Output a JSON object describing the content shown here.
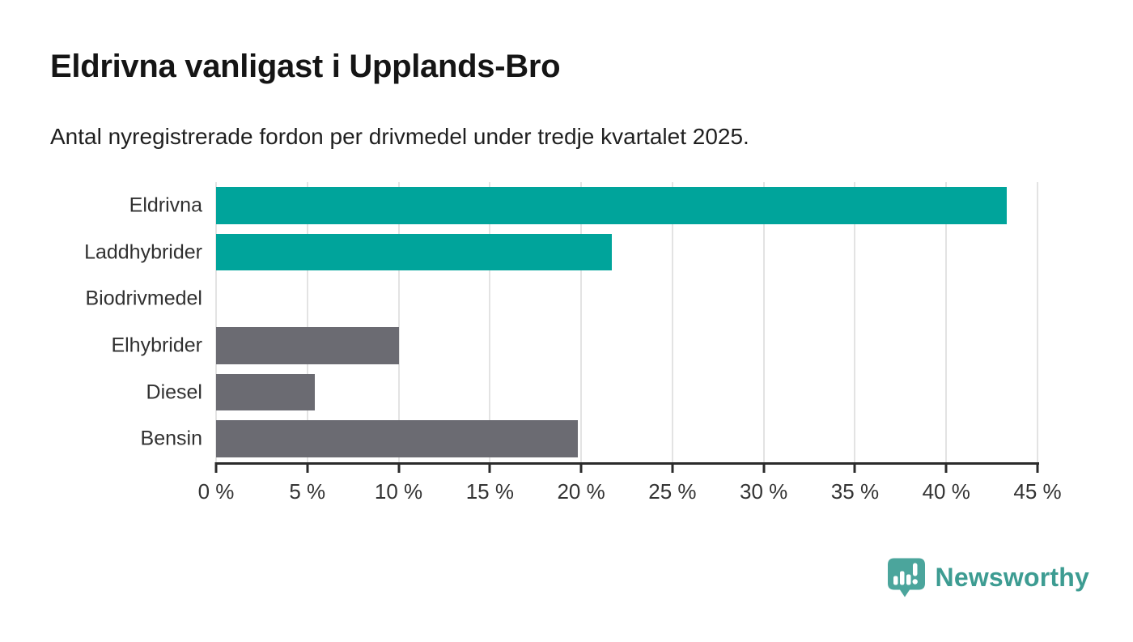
{
  "chart_data": {
    "type": "bar",
    "orientation": "horizontal",
    "title": "Eldrivna vanligast i Upplands-Bro",
    "subtitle": "Antal nyregistrerade fordon per drivmedel under tredje kvartalet 2025.",
    "categories": [
      "Eldrivna",
      "Laddhybrider",
      "Biodrivmedel",
      "Elhybrider",
      "Diesel",
      "Bensin"
    ],
    "values": [
      43.3,
      21.7,
      0,
      10,
      5.4,
      19.8
    ],
    "unit": "%",
    "xlim": [
      0,
      45
    ],
    "x_ticks": [
      0,
      5,
      10,
      15,
      20,
      25,
      30,
      35,
      40,
      45
    ],
    "x_tick_labels": [
      "0 %",
      "5 %",
      "10 %",
      "15 %",
      "20 %",
      "25 %",
      "30 %",
      "35 %",
      "40 %",
      "45 %"
    ],
    "grid": "vertical-only",
    "legend": "none",
    "bar_colors": [
      "#00a49b",
      "#00a49b",
      "#6b6b72",
      "#6b6b72",
      "#6b6b72",
      "#6b6b72"
    ],
    "colors": {
      "highlight": "#00a49b",
      "default": "#6b6b72",
      "gridline": "#e3e3e3",
      "axis": "#2b2b2b",
      "tick_label": "#333333",
      "category_label": "#303030"
    }
  },
  "logo": {
    "label": "Newsworthy",
    "icon": "newsworthy-speech-bubble-bar-chart-icon",
    "icon_color": "#4ba59c",
    "wordmark_color": "#3d9c92"
  }
}
